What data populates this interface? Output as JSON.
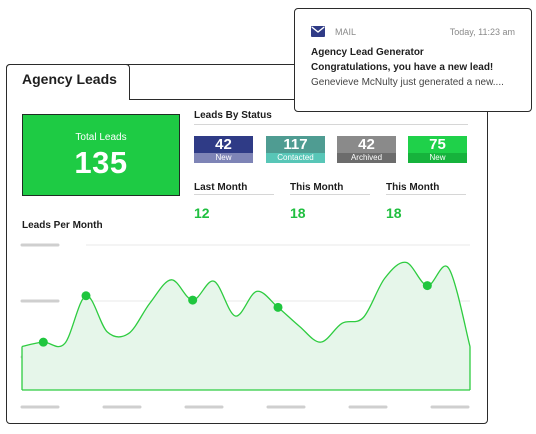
{
  "tab": {
    "title": "Agency Leads"
  },
  "total": {
    "label": "Total Leads",
    "value": "135"
  },
  "status": {
    "title": "Leads By Status",
    "badges": [
      {
        "value": "42",
        "label": "New",
        "top_color": "#2f3b86",
        "bottom_color": "#7e84b6"
      },
      {
        "value": "117",
        "label": "Contacted",
        "top_color": "#4f9c92",
        "bottom_color": "#58c6b7"
      },
      {
        "value": "42",
        "label": "Archived",
        "top_color": "#8a8a8a",
        "bottom_color": "#6c6c6c"
      },
      {
        "value": "75",
        "label": "New",
        "top_color": "#1fd14a",
        "bottom_color": "#16b33c"
      }
    ]
  },
  "months": [
    {
      "label": "Last Month",
      "value": "12"
    },
    {
      "label": "This Month",
      "value": "18"
    },
    {
      "label": "This Month",
      "value": "18"
    }
  ],
  "chart": {
    "title": "Leads Per Month",
    "line_color": "#2ecc40",
    "fill_color": "#e6f6ea"
  },
  "mail": {
    "app": "MAIL",
    "time": "Today, 11:23 am",
    "line1": "Agency Lead Generator",
    "line2": "Congratulations, you have a new lead!",
    "line3": "Genevieve McNulty just generated a new...."
  },
  "chart_data": {
    "type": "area",
    "title": "Leads Per Month",
    "x": [
      0,
      1,
      2,
      3,
      4,
      5,
      6,
      7,
      8,
      9,
      10,
      11,
      12,
      13,
      14,
      15,
      16,
      17,
      18,
      19,
      20,
      21
    ],
    "values": [
      3.0,
      3.3,
      3.2,
      6.5,
      4.0,
      3.9,
      6.0,
      7.6,
      6.2,
      7.5,
      5.1,
      6.8,
      5.7,
      4.4,
      3.3,
      4.6,
      5.0,
      7.7,
      8.8,
      7.2,
      8.4,
      3.0
    ],
    "markers": [
      1,
      3,
      8,
      12,
      19
    ],
    "xlabel": "",
    "ylabel": "",
    "grid": true
  }
}
